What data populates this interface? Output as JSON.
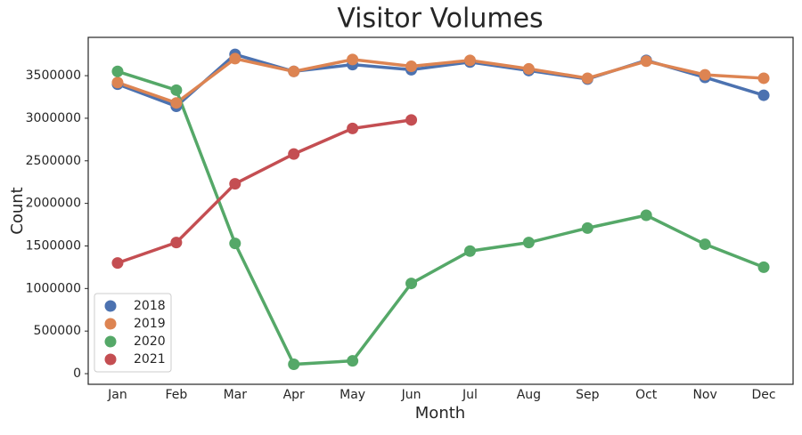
{
  "chart_data": {
    "type": "line",
    "title": "Visitor Volumes",
    "x_label": "Month",
    "y_label": "Count",
    "categories": [
      "Jan",
      "Feb",
      "Mar",
      "Apr",
      "May",
      "Jun",
      "Jul",
      "Aug",
      "Sep",
      "Oct",
      "Nov",
      "Dec"
    ],
    "series": [
      {
        "name": "2018",
        "color": "#4c72b0",
        "values": [
          3400000,
          3140000,
          3750000,
          3550000,
          3630000,
          3570000,
          3660000,
          3560000,
          3460000,
          3680000,
          3480000,
          3270000
        ]
      },
      {
        "name": "2019",
        "color": "#dd8452",
        "values": [
          3420000,
          3180000,
          3700000,
          3550000,
          3690000,
          3610000,
          3680000,
          3580000,
          3470000,
          3670000,
          3510000,
          3470000
        ]
      },
      {
        "name": "2020",
        "color": "#55a868",
        "values": [
          3550000,
          3330000,
          1530000,
          110000,
          150000,
          1060000,
          1440000,
          1540000,
          1710000,
          1860000,
          1520000,
          1250000
        ]
      },
      {
        "name": "2021",
        "color": "#c44e52",
        "values": [
          1300000,
          1540000,
          2230000,
          2580000,
          2880000,
          2980000,
          null,
          null,
          null,
          null,
          null,
          null
        ]
      }
    ],
    "ylim": [
      -125000,
      3950000
    ],
    "yticks": [
      0,
      500000,
      1000000,
      1500000,
      2000000,
      2500000,
      3000000,
      3500000
    ],
    "grid": false,
    "legend": "lower left"
  }
}
